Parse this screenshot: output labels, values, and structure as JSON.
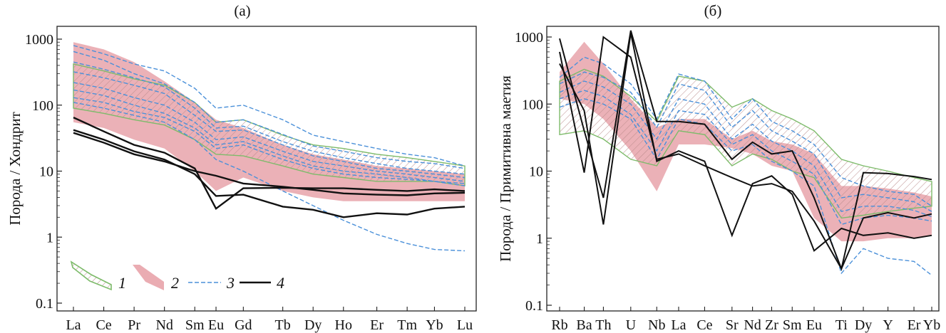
{
  "colors": {
    "hatch_fill": "#c9a6a6",
    "hatch_outline": "#7dbb6a",
    "red_field": "#e8a3aa",
    "dashed": "#4a90d9",
    "black": "#111111"
  },
  "legend": {
    "items": [
      {
        "num": "1",
        "icon": "hatched-green-band-icon"
      },
      {
        "num": "2",
        "icon": "pink-field-icon"
      },
      {
        "num": "3",
        "icon": "blue-dashed-line-icon"
      },
      {
        "num": "4",
        "icon": "black-solid-line-icon"
      }
    ]
  },
  "chart_data": [
    {
      "type": "line",
      "panel_label": "(а)",
      "ylabel": "Порода / Хондрит",
      "xlabel": "",
      "yscale": "log",
      "ylim": [
        0.1,
        1000
      ],
      "yticks": [
        "0.1",
        "1",
        "10",
        "100",
        "1000"
      ],
      "categories": [
        "La",
        "Ce",
        "Pr",
        "Nd",
        "Sm",
        "Eu",
        "Gd",
        "Tb",
        "Dy",
        "Ho",
        "Er",
        "Tm",
        "Yb",
        "Lu"
      ],
      "x_positions": [
        0,
        1,
        2,
        3,
        4,
        4.7,
        5.6,
        6.9,
        7.9,
        8.9,
        10.0,
        11.0,
        11.9,
        12.9
      ],
      "hatched_band": {
        "upper": [
          420,
          330,
          250,
          200,
          110,
          55,
          60,
          35,
          25,
          22,
          18,
          16,
          14,
          12
        ],
        "lower": [
          90,
          75,
          60,
          50,
          30,
          18,
          17,
          12,
          9,
          8,
          7,
          7,
          7,
          6
        ]
      },
      "red_field": {
        "upper": [
          900,
          700,
          450,
          230,
          110,
          60,
          45,
          25,
          18,
          15,
          12,
          11,
          10,
          9
        ],
        "lower": [
          55,
          45,
          30,
          22,
          10,
          5,
          8,
          5,
          4,
          3.5,
          3.5,
          3.5,
          3.5,
          3.5
        ]
      },
      "dashed_series": [
        {
          "values": [
            800,
            600,
            420,
            330,
            180,
            90,
            100,
            60,
            35,
            28,
            22,
            18,
            16,
            12
          ]
        },
        {
          "values": [
            650,
            480,
            300,
            210,
            110,
            55,
            60,
            36,
            24,
            20,
            16,
            14,
            13,
            11
          ]
        },
        {
          "values": [
            450,
            350,
            260,
            190,
            90,
            45,
            48,
            28,
            20,
            16,
            13,
            11,
            10,
            9
          ]
        },
        {
          "values": [
            320,
            260,
            200,
            150,
            70,
            40,
            42,
            25,
            17,
            14,
            11,
            10,
            9,
            8
          ]
        },
        {
          "values": [
            220,
            180,
            130,
            100,
            55,
            30,
            33,
            20,
            14,
            12,
            10,
            9,
            8,
            7
          ]
        },
        {
          "values": [
            170,
            140,
            100,
            75,
            45,
            25,
            28,
            17,
            12,
            10,
            9,
            8,
            7,
            6.5
          ]
        },
        {
          "values": [
            130,
            110,
            80,
            65,
            40,
            22,
            25,
            15,
            11,
            9,
            8,
            7.5,
            7,
            6
          ]
        },
        {
          "values": [
            110,
            90,
            70,
            55,
            30,
            15,
            10,
            5,
            3,
            1.8,
            1.1,
            0.8,
            0.65,
            0.62
          ]
        }
      ],
      "black_series": [
        {
          "values": [
            65,
            40,
            25,
            19,
            11,
            2.7,
            5.5,
            5.6,
            5.5,
            5.5,
            5.2,
            5.0,
            5.3,
            5.0
          ]
        },
        {
          "values": [
            42,
            30,
            20,
            15,
            9,
            4.2,
            4.4,
            2.9,
            2.6,
            2.0,
            2.3,
            2.2,
            2.7,
            2.9
          ]
        },
        {
          "values": [
            38,
            27,
            18,
            14,
            10,
            8.5,
            6.5,
            5.8,
            5.2,
            4.6,
            4.4,
            4.3,
            4.6,
            4.7
          ]
        }
      ]
    },
    {
      "type": "line",
      "panel_label": "(б)",
      "ylabel": "Порода / Примитивна маетия",
      "xlabel": "",
      "yscale": "log",
      "ylim": [
        0.1,
        1000
      ],
      "yticks": [
        "0.1",
        "1",
        "10",
        "100",
        "1000"
      ],
      "categories": [
        "Rb",
        "Ba",
        "Th",
        "U",
        "Nb",
        "La",
        "Ce",
        "Sr",
        "Nd",
        "Zr",
        "Sm",
        "Eu",
        "Ti",
        "Dy",
        "Y",
        "Er",
        "Yb"
      ],
      "x_positions": [
        0,
        0.9,
        1.6,
        2.6,
        3.55,
        4.35,
        5.3,
        6.3,
        7.05,
        7.75,
        8.5,
        9.3,
        10.3,
        11.1,
        12.0,
        12.95,
        13.6
      ],
      "hatched_band": {
        "upper": [
          220,
          330,
          260,
          130,
          55,
          260,
          220,
          90,
          120,
          80,
          60,
          40,
          15,
          12,
          10,
          8,
          7
        ],
        "lower": [
          35,
          40,
          30,
          15,
          12,
          40,
          35,
          12,
          18,
          15,
          10,
          8,
          2,
          2.2,
          2.5,
          2.8,
          3
        ]
      },
      "red_field": {
        "upper": [
          300,
          850,
          400,
          120,
          45,
          60,
          60,
          30,
          40,
          28,
          25,
          18,
          6,
          6,
          5.5,
          4.8,
          4.2
        ],
        "lower": [
          120,
          100,
          60,
          20,
          5,
          25,
          25,
          22,
          18,
          12,
          10,
          2,
          0.9,
          0.9,
          1.0,
          1.0,
          1.1
        ]
      },
      "dashed_series": [
        {
          "values": [
            250,
            500,
            400,
            200,
            60,
            280,
            220,
            60,
            120,
            55,
            40,
            25,
            8,
            6,
            5,
            4.5,
            3
          ]
        },
        {
          "values": [
            200,
            300,
            250,
            150,
            45,
            200,
            160,
            45,
            80,
            40,
            28,
            18,
            4,
            4.5,
            4,
            3.5,
            2.5
          ]
        },
        {
          "values": [
            150,
            220,
            180,
            100,
            30,
            120,
            100,
            30,
            50,
            28,
            20,
            12,
            2.5,
            3,
            3,
            2.6,
            2.1
          ]
        },
        {
          "values": [
            120,
            160,
            130,
            70,
            20,
            80,
            70,
            25,
            35,
            20,
            14,
            9,
            1.6,
            2,
            2.2,
            2.0,
            1.8
          ]
        },
        {
          "values": [
            90,
            120,
            100,
            60,
            15,
            60,
            50,
            20,
            25,
            14,
            10,
            6,
            0.3,
            0.7,
            0.5,
            0.45,
            0.28
          ]
        }
      ],
      "black_series": [
        {
          "values": [
            950,
            40,
            4,
            1250,
            55,
            55,
            50,
            15,
            27,
            18,
            20,
            4,
            0.35,
            9.5,
            9.2,
            8.3,
            7.5
          ]
        },
        {
          "values": [
            600,
            9.5,
            1000,
            500,
            15,
            18,
            12,
            8,
            6,
            6.5,
            5,
            1.8,
            0.35,
            2,
            2.4,
            2.0,
            2.3
          ]
        },
        {
          "values": [
            400,
            80,
            1.6,
            1150,
            14,
            20,
            14,
            1.1,
            6.5,
            8.5,
            4.5,
            0.65,
            1.4,
            1.1,
            1.2,
            1.0,
            1.1
          ]
        }
      ]
    }
  ]
}
